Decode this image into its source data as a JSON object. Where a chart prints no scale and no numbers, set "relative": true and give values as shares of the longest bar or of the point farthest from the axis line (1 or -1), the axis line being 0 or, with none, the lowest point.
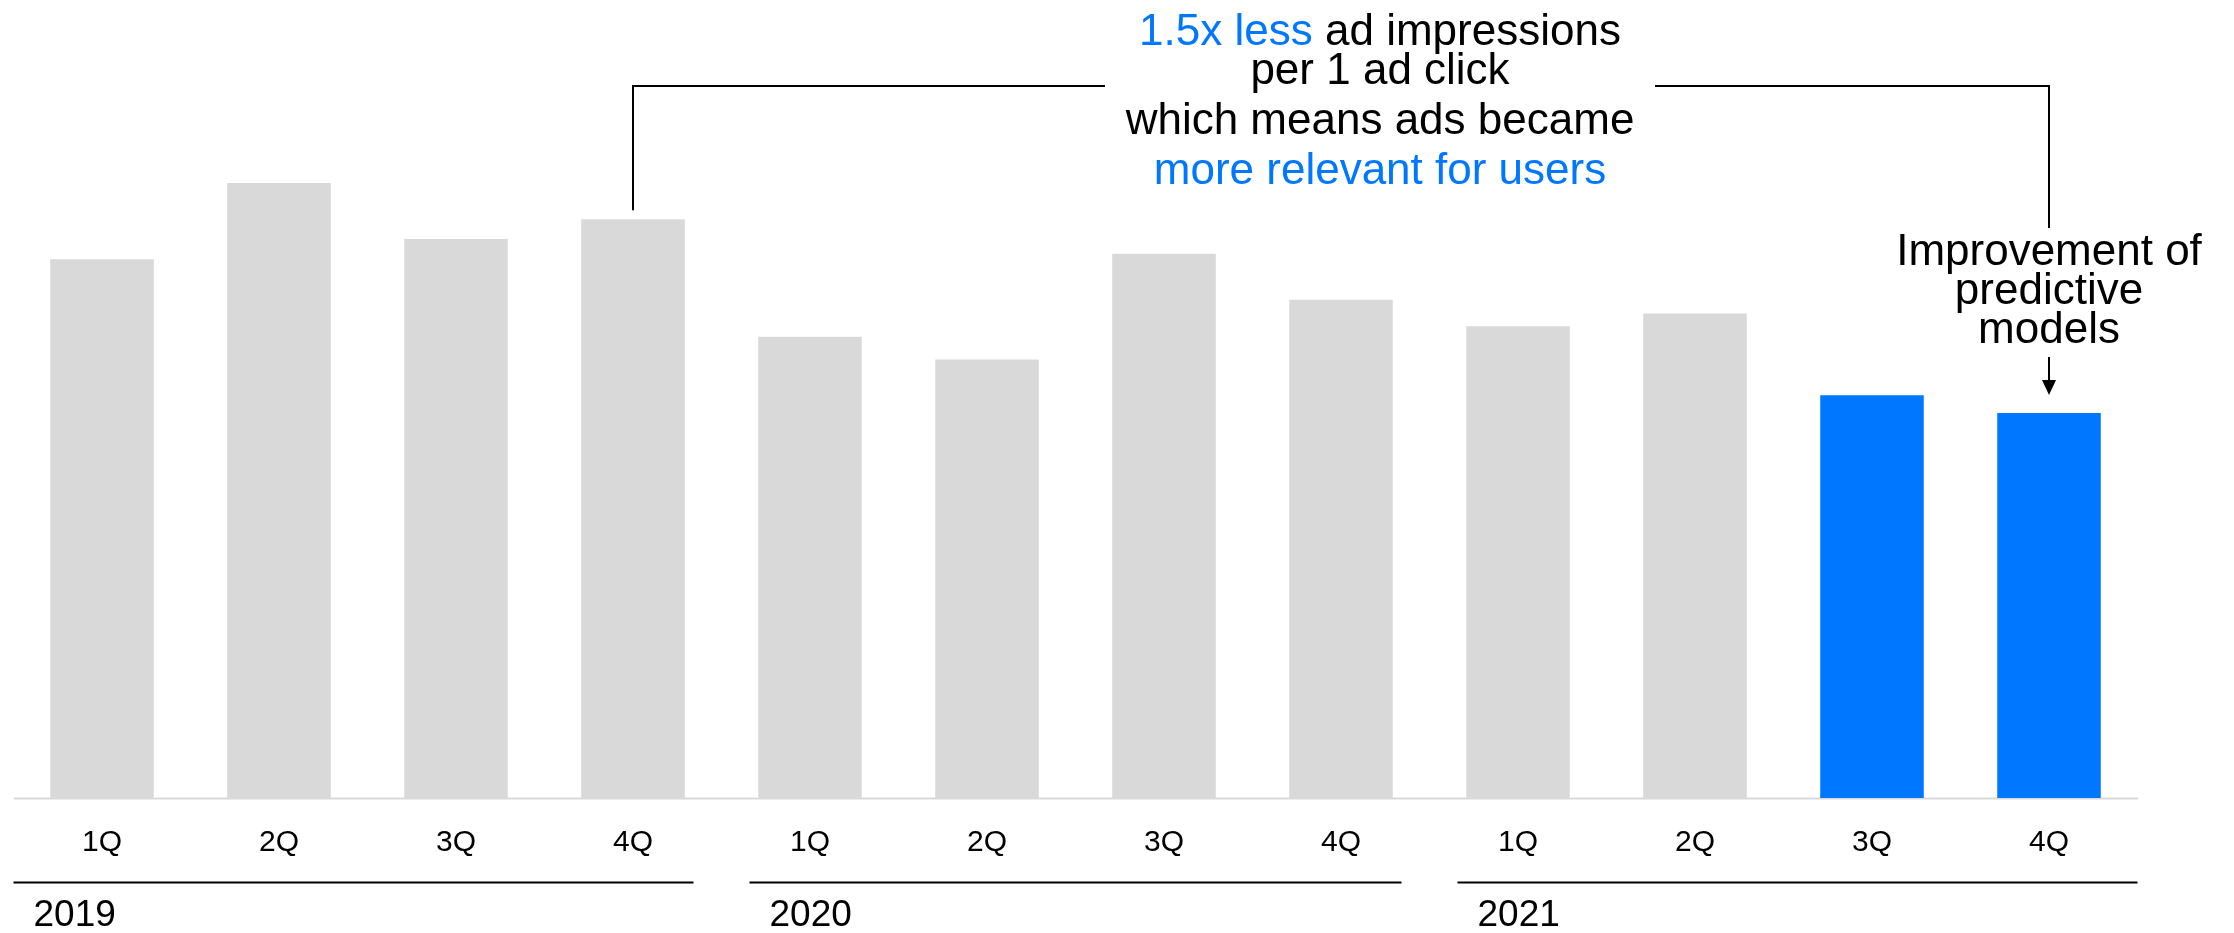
{
  "chart_data": {
    "type": "bar",
    "relative": true,
    "categories": [
      "1Q",
      "2Q",
      "3Q",
      "4Q",
      "1Q",
      "2Q",
      "3Q",
      "4Q",
      "1Q",
      "2Q",
      "3Q",
      "4Q"
    ],
    "values": [
      0.876,
      1,
      0.909,
      0.941,
      0.75,
      0.713,
      0.885,
      0.81,
      0.767,
      0.788,
      0.655,
      0.626
    ],
    "colors": [
      "#d9d9d9",
      "#d9d9d9",
      "#d9d9d9",
      "#d9d9d9",
      "#d9d9d9",
      "#d9d9d9",
      "#d9d9d9",
      "#d9d9d9",
      "#d9d9d9",
      "#d9d9d9",
      "#0077ff",
      "#0077ff"
    ],
    "annotations": [
      "1.5x less",
      "ad impressions",
      "per 1 ad click",
      "which means ads became",
      "more relevant for users",
      "Improvement of predictive models",
      "2019",
      "2020",
      "2021"
    ]
  }
}
